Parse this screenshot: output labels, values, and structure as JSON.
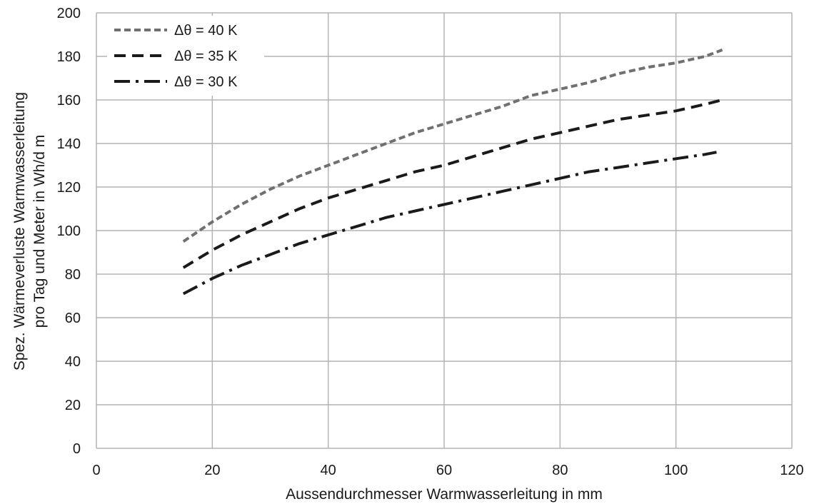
{
  "chart_data": {
    "type": "line",
    "xlabel": "Aussendurchmesser Warmwasserleitung in mm",
    "ylabel_lines": [
      "Spez. Wärmeverluste Warmwasserleitung",
      "pro Tag und Meter in Wh/d m"
    ],
    "xlim": [
      0,
      120
    ],
    "ylim": [
      0,
      200
    ],
    "x_ticks": [
      "0",
      "20",
      "40",
      "60",
      "80",
      "100",
      "120"
    ],
    "y_ticks": [
      "0",
      "20",
      "40",
      "60",
      "80",
      "100",
      "120",
      "140",
      "160",
      "180",
      "200"
    ],
    "grid": true,
    "legend_position": "top-left",
    "series": [
      {
        "name": "Δθ = 40 K",
        "color": "#707070",
        "style": "short-dash",
        "points": [
          [
            15,
            95
          ],
          [
            20,
            104
          ],
          [
            25,
            112
          ],
          [
            30,
            119
          ],
          [
            35,
            125
          ],
          [
            40,
            130
          ],
          [
            45,
            135
          ],
          [
            50,
            140
          ],
          [
            55,
            145
          ],
          [
            60,
            149
          ],
          [
            65,
            153
          ],
          [
            70,
            157
          ],
          [
            75,
            162
          ],
          [
            80,
            165
          ],
          [
            85,
            168
          ],
          [
            90,
            172
          ],
          [
            95,
            175
          ],
          [
            100,
            177
          ],
          [
            105,
            180
          ],
          [
            108,
            183
          ]
        ]
      },
      {
        "name": "Δθ = 35 K",
        "color": "#1a1a1a",
        "style": "dash",
        "points": [
          [
            15,
            83
          ],
          [
            20,
            91
          ],
          [
            25,
            98
          ],
          [
            30,
            104
          ],
          [
            35,
            110
          ],
          [
            40,
            115
          ],
          [
            45,
            119
          ],
          [
            50,
            123
          ],
          [
            55,
            127
          ],
          [
            60,
            130
          ],
          [
            65,
            134
          ],
          [
            70,
            138
          ],
          [
            75,
            142
          ],
          [
            80,
            145
          ],
          [
            85,
            148
          ],
          [
            90,
            151
          ],
          [
            95,
            153
          ],
          [
            100,
            155
          ],
          [
            105,
            158
          ],
          [
            108,
            160
          ]
        ]
      },
      {
        "name": "Δθ = 30 K",
        "color": "#1a1a1a",
        "style": "dash-dot",
        "points": [
          [
            15,
            71
          ],
          [
            20,
            78
          ],
          [
            25,
            84
          ],
          [
            30,
            89
          ],
          [
            35,
            94
          ],
          [
            40,
            98
          ],
          [
            45,
            102
          ],
          [
            50,
            106
          ],
          [
            55,
            109
          ],
          [
            60,
            112
          ],
          [
            65,
            115
          ],
          [
            70,
            118
          ],
          [
            75,
            121
          ],
          [
            80,
            124
          ],
          [
            85,
            127
          ],
          [
            90,
            129
          ],
          [
            95,
            131
          ],
          [
            100,
            133
          ],
          [
            105,
            135
          ],
          [
            107,
            136
          ]
        ]
      }
    ]
  }
}
